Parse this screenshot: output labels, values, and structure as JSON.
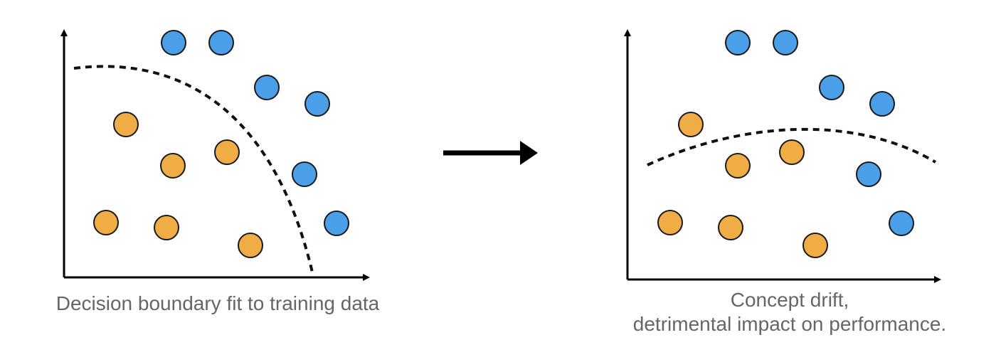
{
  "colors": {
    "orange": "#F0AD45",
    "blue": "#4B9FE8",
    "outline": "#1a1a1a",
    "axis": "#000000",
    "text": "#666666"
  },
  "panels": {
    "left": {
      "caption": "Decision boundary fit to training data",
      "points": [
        {
          "cls": "blue"
        },
        {
          "cls": "blue"
        },
        {
          "cls": "blue"
        },
        {
          "cls": "blue"
        },
        {
          "cls": "blue"
        },
        {
          "cls": "blue"
        },
        {
          "cls": "orange"
        },
        {
          "cls": "orange"
        },
        {
          "cls": "orange"
        },
        {
          "cls": "orange"
        },
        {
          "cls": "orange"
        },
        {
          "cls": "orange"
        }
      ]
    },
    "right": {
      "caption_line1": "Concept drift,",
      "caption_line2": "detrimental impact on performance.",
      "points": [
        {
          "cls": "blue"
        },
        {
          "cls": "blue"
        },
        {
          "cls": "blue"
        },
        {
          "cls": "blue"
        },
        {
          "cls": "blue"
        },
        {
          "cls": "blue"
        },
        {
          "cls": "orange"
        },
        {
          "cls": "orange"
        },
        {
          "cls": "orange"
        },
        {
          "cls": "orange"
        },
        {
          "cls": "orange"
        },
        {
          "cls": "orange"
        }
      ]
    }
  },
  "arrow": {
    "icon": "right-arrow-icon"
  }
}
